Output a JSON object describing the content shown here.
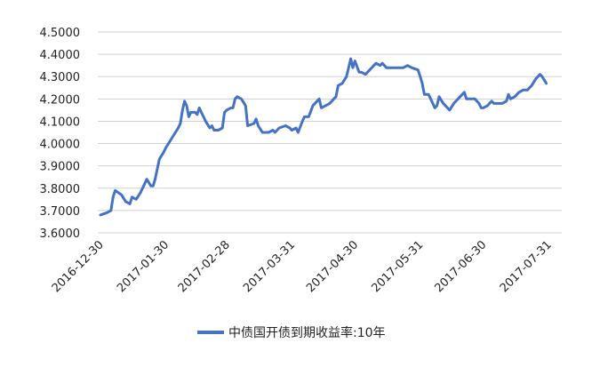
{
  "chart_data": {
    "type": "line",
    "title": "",
    "xlabel": "",
    "ylabel": "",
    "ylim": [
      3.6,
      4.5
    ],
    "y_ticks": [
      "3.6000",
      "3.7000",
      "3.8000",
      "3.9000",
      "4.0000",
      "4.1000",
      "4.2000",
      "4.3000",
      "4.4000",
      "4.5000"
    ],
    "x_ticks": [
      "2016-12-30",
      "2017-01-30",
      "2017-02-28",
      "2017-03-31",
      "2017-04-30",
      "2017-05-31",
      "2017-06-30",
      "2017-07-31"
    ],
    "grid": "horizontal",
    "legend_position": "bottom",
    "series": [
      {
        "name": "中债国开债到期收益率:10年",
        "color": "#4472C4",
        "points": [
          [
            "2016-12-30",
            3.68
          ],
          [
            "2017-01-02",
            3.69
          ],
          [
            "2017-01-04",
            3.7
          ],
          [
            "2017-01-05",
            3.76
          ],
          [
            "2017-01-06",
            3.79
          ],
          [
            "2017-01-09",
            3.77
          ],
          [
            "2017-01-11",
            3.74
          ],
          [
            "2017-01-13",
            3.73
          ],
          [
            "2017-01-14",
            3.76
          ],
          [
            "2017-01-16",
            3.75
          ],
          [
            "2017-01-18",
            3.78
          ],
          [
            "2017-01-20",
            3.82
          ],
          [
            "2017-01-21",
            3.84
          ],
          [
            "2017-01-23",
            3.81
          ],
          [
            "2017-01-24",
            3.81
          ],
          [
            "2017-01-25",
            3.84
          ],
          [
            "2017-01-27",
            3.93
          ],
          [
            "2017-01-29",
            3.96
          ],
          [
            "2017-01-30",
            3.98
          ],
          [
            "2017-02-01",
            4.01
          ],
          [
            "2017-02-03",
            4.04
          ],
          [
            "2017-02-05",
            4.07
          ],
          [
            "2017-02-06",
            4.09
          ],
          [
            "2017-02-07",
            4.15
          ],
          [
            "2017-02-08",
            4.19
          ],
          [
            "2017-02-09",
            4.17
          ],
          [
            "2017-02-10",
            4.12
          ],
          [
            "2017-02-11",
            4.14
          ],
          [
            "2017-02-13",
            4.14
          ],
          [
            "2017-02-14",
            4.13
          ],
          [
            "2017-02-15",
            4.16
          ],
          [
            "2017-02-17",
            4.12
          ],
          [
            "2017-02-18",
            4.1
          ],
          [
            "2017-02-20",
            4.07
          ],
          [
            "2017-02-21",
            4.08
          ],
          [
            "2017-02-22",
            4.06
          ],
          [
            "2017-02-24",
            4.06
          ],
          [
            "2017-02-26",
            4.07
          ],
          [
            "2017-02-27",
            4.14
          ],
          [
            "2017-02-28",
            4.15
          ],
          [
            "2017-03-02",
            4.16
          ],
          [
            "2017-03-03",
            4.16
          ],
          [
            "2017-03-04",
            4.2
          ],
          [
            "2017-03-05",
            4.21
          ],
          [
            "2017-03-07",
            4.2
          ],
          [
            "2017-03-09",
            4.17
          ],
          [
            "2017-03-10",
            4.08
          ],
          [
            "2017-03-13",
            4.09
          ],
          [
            "2017-03-14",
            4.11
          ],
          [
            "2017-03-15",
            4.08
          ],
          [
            "2017-03-17",
            4.05
          ],
          [
            "2017-03-20",
            4.05
          ],
          [
            "2017-03-22",
            4.06
          ],
          [
            "2017-03-23",
            4.05
          ],
          [
            "2017-03-25",
            4.07
          ],
          [
            "2017-03-28",
            4.08
          ],
          [
            "2017-03-30",
            4.07
          ],
          [
            "2017-03-31",
            4.06
          ],
          [
            "2017-04-02",
            4.07
          ],
          [
            "2017-04-03",
            4.05
          ],
          [
            "2017-04-05",
            4.1
          ],
          [
            "2017-04-06",
            4.12
          ],
          [
            "2017-04-08",
            4.12
          ],
          [
            "2017-04-10",
            4.17
          ],
          [
            "2017-04-12",
            4.19
          ],
          [
            "2017-04-13",
            4.2
          ],
          [
            "2017-04-14",
            4.16
          ],
          [
            "2017-04-16",
            4.17
          ],
          [
            "2017-04-18",
            4.18
          ],
          [
            "2017-04-20",
            4.2
          ],
          [
            "2017-04-21",
            4.21
          ],
          [
            "2017-04-22",
            4.26
          ],
          [
            "2017-04-24",
            4.27
          ],
          [
            "2017-04-26",
            4.3
          ],
          [
            "2017-04-27",
            4.34
          ],
          [
            "2017-04-28",
            4.38
          ],
          [
            "2017-04-29",
            4.34
          ],
          [
            "2017-04-30",
            4.37
          ],
          [
            "2017-05-02",
            4.32
          ],
          [
            "2017-05-03",
            4.32
          ],
          [
            "2017-05-05",
            4.31
          ],
          [
            "2017-05-07",
            4.33
          ],
          [
            "2017-05-09",
            4.35
          ],
          [
            "2017-05-10",
            4.36
          ],
          [
            "2017-05-12",
            4.35
          ],
          [
            "2017-05-13",
            4.36
          ],
          [
            "2017-05-15",
            4.34
          ],
          [
            "2017-05-18",
            4.34
          ],
          [
            "2017-05-20",
            4.34
          ],
          [
            "2017-05-23",
            4.34
          ],
          [
            "2017-05-25",
            4.35
          ],
          [
            "2017-05-27",
            4.34
          ],
          [
            "2017-05-30",
            4.33
          ],
          [
            "2017-05-31",
            4.3
          ],
          [
            "2017-06-01",
            4.27
          ],
          [
            "2017-06-02",
            4.22
          ],
          [
            "2017-06-04",
            4.22
          ],
          [
            "2017-06-06",
            4.18
          ],
          [
            "2017-06-07",
            4.16
          ],
          [
            "2017-06-08",
            4.17
          ],
          [
            "2017-06-09",
            4.21
          ],
          [
            "2017-06-11",
            4.18
          ],
          [
            "2017-06-13",
            4.16
          ],
          [
            "2017-06-14",
            4.15
          ],
          [
            "2017-06-16",
            4.18
          ],
          [
            "2017-06-18",
            4.2
          ],
          [
            "2017-06-20",
            4.22
          ],
          [
            "2017-06-21",
            4.23
          ],
          [
            "2017-06-22",
            4.2
          ],
          [
            "2017-06-24",
            4.2
          ],
          [
            "2017-06-26",
            4.2
          ],
          [
            "2017-06-28",
            4.18
          ],
          [
            "2017-06-29",
            4.16
          ],
          [
            "2017-06-30",
            4.16
          ],
          [
            "2017-07-02",
            4.17
          ],
          [
            "2017-07-04",
            4.19
          ],
          [
            "2017-07-05",
            4.18
          ],
          [
            "2017-07-07",
            4.18
          ],
          [
            "2017-07-09",
            4.18
          ],
          [
            "2017-07-11",
            4.19
          ],
          [
            "2017-07-12",
            4.22
          ],
          [
            "2017-07-13",
            4.2
          ],
          [
            "2017-07-15",
            4.21
          ],
          [
            "2017-07-17",
            4.23
          ],
          [
            "2017-07-19",
            4.24
          ],
          [
            "2017-07-21",
            4.24
          ],
          [
            "2017-07-23",
            4.26
          ],
          [
            "2017-07-25",
            4.29
          ],
          [
            "2017-07-27",
            4.31
          ],
          [
            "2017-07-28",
            4.3
          ],
          [
            "2017-07-30",
            4.27
          ]
        ]
      }
    ]
  }
}
